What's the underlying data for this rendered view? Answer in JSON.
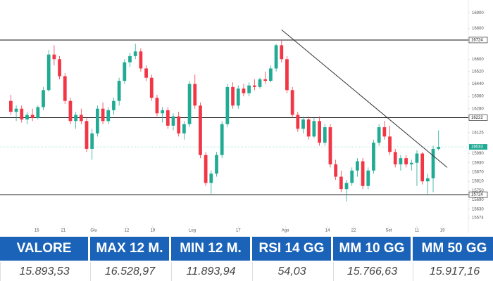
{
  "chart_data": {
    "type": "candlestick",
    "open": [
      16330,
      16260,
      16280,
      16210,
      16240,
      16220,
      16290,
      16400,
      16630,
      16600,
      16490,
      16330,
      16200,
      16240,
      16200,
      16020,
      16120,
      16280,
      16200,
      16270,
      16330,
      16460,
      16580,
      16620,
      16650,
      16540,
      16480,
      16350,
      16250,
      16270,
      16170,
      16230,
      16120,
      16180,
      16440,
      16300,
      15980,
      15800,
      15860,
      15980,
      16180,
      16420,
      16300,
      16410,
      16380,
      16430,
      16420,
      16470,
      16460,
      16540,
      16690,
      16600,
      16400,
      16240,
      16150,
      16210,
      16100,
      16200,
      16060,
      16160,
      15920,
      15840,
      15760,
      15800,
      15880,
      15940,
      15780,
      15880,
      16060,
      16160,
      16100,
      16000,
      15920,
      15960,
      15920,
      15930,
      15990,
      15810,
      15830,
      16020
    ],
    "high": [
      16370,
      16300,
      16300,
      16260,
      16280,
      16300,
      16420,
      16660,
      16690,
      16620,
      16510,
      16350,
      16260,
      16280,
      16220,
      16150,
      16300,
      16320,
      16290,
      16350,
      16480,
      16600,
      16640,
      16700,
      16670,
      16560,
      16500,
      16370,
      16290,
      16290,
      16250,
      16260,
      16200,
      16460,
      16500,
      16320,
      16000,
      15880,
      16000,
      16200,
      16440,
      16450,
      16430,
      16440,
      16450,
      16470,
      16480,
      16520,
      16560,
      16700,
      16720,
      16620,
      16420,
      16260,
      16230,
      16230,
      16220,
      16230,
      16180,
      16180,
      15950,
      15880,
      15820,
      15900,
      15960,
      15960,
      15900,
      16080,
      16180,
      16200,
      16170,
      16020,
      15980,
      15980,
      15950,
      16010,
      16000,
      15860,
      16040,
      16140
    ],
    "low": [
      16240,
      16200,
      16190,
      16180,
      16200,
      16210,
      16270,
      16390,
      16560,
      16470,
      16310,
      16180,
      16150,
      16180,
      16000,
      15950,
      16100,
      16180,
      16180,
      16240,
      16300,
      16440,
      16550,
      16600,
      16520,
      16460,
      16330,
      16230,
      16190,
      16150,
      16140,
      16100,
      16080,
      16160,
      16280,
      15960,
      15780,
      15730,
      15840,
      15960,
      16160,
      16280,
      16280,
      16360,
      16360,
      16400,
      16410,
      16440,
      16450,
      16520,
      16580,
      16380,
      16220,
      16130,
      16120,
      16080,
      16090,
      16040,
      16040,
      15900,
      15820,
      15740,
      15680,
      15780,
      15840,
      15760,
      15760,
      15860,
      16040,
      16080,
      15980,
      15900,
      15880,
      15900,
      15880,
      15780,
      15790,
      15730,
      15740,
      16010
    ],
    "close": [
      16260,
      16280,
      16210,
      16240,
      16220,
      16290,
      16400,
      16630,
      16600,
      16490,
      16330,
      16200,
      16240,
      16200,
      16020,
      16120,
      16280,
      16200,
      16270,
      16330,
      16460,
      16580,
      16620,
      16650,
      16540,
      16480,
      16350,
      16250,
      16270,
      16170,
      16230,
      16120,
      16180,
      16440,
      16300,
      15980,
      15800,
      15860,
      15980,
      16180,
      16420,
      16300,
      16410,
      16380,
      16430,
      16420,
      16470,
      16460,
      16540,
      16690,
      16600,
      16400,
      16240,
      16150,
      16210,
      16100,
      16200,
      16060,
      16160,
      15920,
      15840,
      15760,
      15800,
      15880,
      15940,
      15780,
      15880,
      16060,
      16160,
      16100,
      16000,
      15920,
      15960,
      15920,
      15930,
      15990,
      15810,
      15830,
      16020,
      16033
    ],
    "up_color": "#22ab94",
    "down_color": "#f23645",
    "xlim": [
      -2,
      84.5
    ],
    "xticks": [
      {
        "value": 4.8,
        "label": "15"
      },
      {
        "value": 9.7,
        "label": "21"
      },
      {
        "value": 15.3,
        "label": "Giu"
      },
      {
        "value": 21.4,
        "label": "12"
      },
      {
        "value": 26.2,
        "label": "19"
      },
      {
        "value": 33.5,
        "label": "Lug"
      },
      {
        "value": 42,
        "label": "17"
      },
      {
        "value": 50.7,
        "label": "Ago"
      },
      {
        "value": 58.5,
        "label": "14"
      },
      {
        "value": 63.3,
        "label": "22"
      },
      {
        "value": 69.8,
        "label": "Set"
      },
      {
        "value": 75,
        "label": "11"
      },
      {
        "value": 79.7,
        "label": "19"
      }
    ],
    "ylim": [
      15520,
      16960
    ],
    "yticks": [
      16900,
      16800,
      16600,
      16520,
      16440,
      16360,
      16280,
      16125,
      15990,
      15930,
      15870,
      15810,
      15750,
      15690,
      15630,
      15574
    ],
    "grid": false,
    "levels": [
      16724,
      16222,
      15724
    ],
    "last_price": 16033,
    "last_price_color": "#22ab94",
    "trendline": {
      "x": [
        50,
        80.6
      ],
      "y": [
        16790,
        15900
      ]
    }
  },
  "table": {
    "headers": [
      "VALORE",
      "MAX 12 M.",
      "MIN 12 M.",
      "RSI 14 GG",
      "MM 10 GG",
      "MM 50 GG"
    ],
    "values": [
      "15.893,53",
      "16.528,97",
      "11.893,94",
      "54,03",
      "15.766,63",
      "15.917,16"
    ]
  }
}
